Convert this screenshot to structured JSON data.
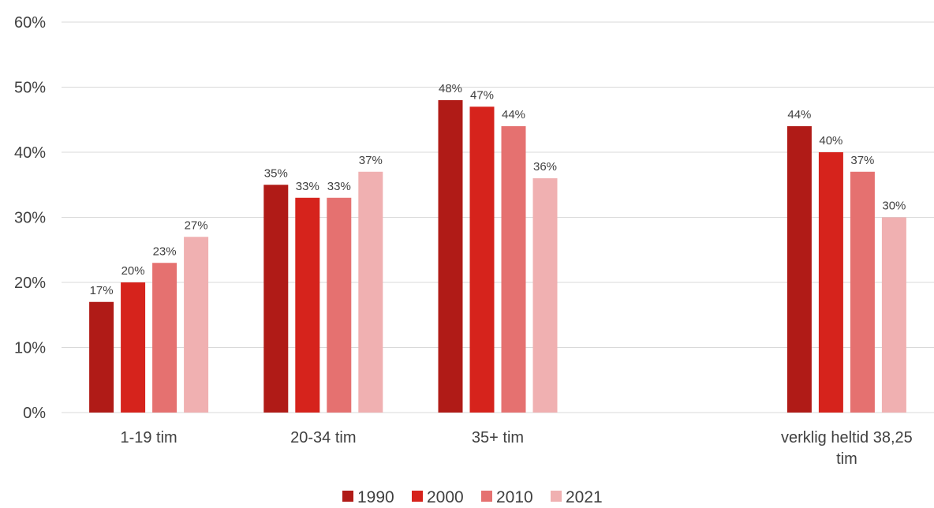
{
  "chart_data": {
    "type": "bar",
    "categories": [
      "1-19 tim",
      "20-34 tim",
      "35+ tim",
      "",
      "verklig heltid 38,25 tim"
    ],
    "category_lines": [
      [
        "1-19 tim"
      ],
      [
        "20-34 tim"
      ],
      [
        "35+ tim"
      ],
      [],
      [
        "verklig heltid 38,25",
        "tim"
      ]
    ],
    "series": [
      {
        "name": "1990",
        "values": [
          17,
          35,
          48,
          null,
          44
        ],
        "labels": [
          "17%",
          "35%",
          "48%",
          "",
          "44%"
        ],
        "color": "#b01b17"
      },
      {
        "name": "2000",
        "values": [
          20,
          33,
          47,
          null,
          40
        ],
        "labels": [
          "20%",
          "33%",
          "47%",
          "",
          "40%"
        ],
        "color": "#d6231c"
      },
      {
        "name": "2010",
        "values": [
          23,
          33,
          44,
          null,
          37
        ],
        "labels": [
          "23%",
          "33%",
          "44%",
          "",
          "37%"
        ],
        "color": "#e57170"
      },
      {
        "name": "2021",
        "values": [
          27,
          37,
          36,
          null,
          30
        ],
        "labels": [
          "27%",
          "37%",
          "36%",
          "",
          "30%"
        ],
        "color": "#f0b0b1"
      }
    ],
    "ylim": [
      0,
      60
    ],
    "yticks": [
      0,
      10,
      20,
      30,
      40,
      50,
      60
    ],
    "ytick_labels": [
      "0%",
      "10%",
      "20%",
      "30%",
      "40%",
      "50%",
      "60%"
    ],
    "title": "",
    "xlabel": "",
    "ylabel": "",
    "grid": true,
    "legend_position": "bottom-center",
    "colors": {
      "grid": "#d9d9d9",
      "text": "#404040"
    }
  }
}
